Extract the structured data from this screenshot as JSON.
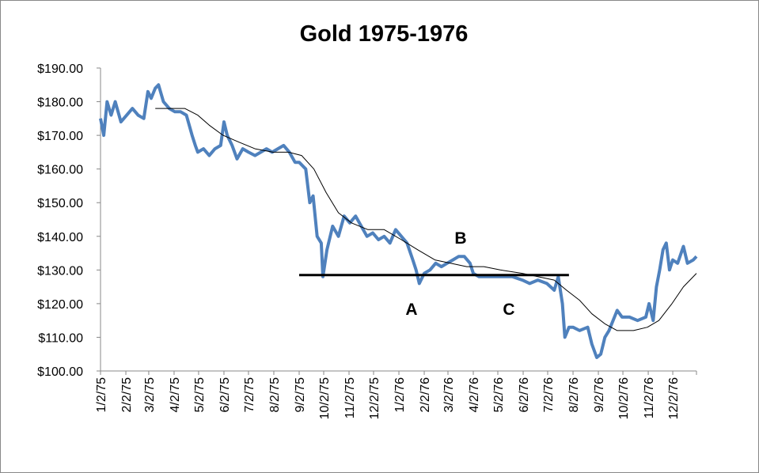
{
  "chart_data": {
    "type": "line",
    "title": "Gold 1975-1976",
    "xlim": [
      "1/2/75",
      "12/31/76"
    ],
    "xticks": [
      "1/2/75",
      "2/2/75",
      "3/2/75",
      "4/2/75",
      "5/2/75",
      "6/2/75",
      "7/2/75",
      "8/2/75",
      "9/2/75",
      "10/2/75",
      "11/2/75",
      "12/2/75",
      "1/2/76",
      "2/2/76",
      "3/2/76",
      "4/2/76",
      "5/2/76",
      "6/2/76",
      "7/2/76",
      "8/2/76",
      "9/2/76",
      "10/2/76",
      "11/2/76",
      "12/2/76"
    ],
    "ylim": [
      100,
      190
    ],
    "yticks": [
      {
        "value": 100,
        "label": "$100.00"
      },
      {
        "value": 110,
        "label": "$110.00"
      },
      {
        "value": 120,
        "label": "$120.00"
      },
      {
        "value": 130,
        "label": "$130.00"
      },
      {
        "value": 140,
        "label": "$140.00"
      },
      {
        "value": 150,
        "label": "$150.00"
      },
      {
        "value": 160,
        "label": "$160.00"
      },
      {
        "value": 170,
        "label": "$170.00"
      },
      {
        "value": 180,
        "label": "$180.00"
      },
      {
        "value": 190,
        "label": "$190.00"
      }
    ],
    "grid": false,
    "series": [
      {
        "color": "#4f81bd",
        "width": 4,
        "x": [
          "1/2/75",
          "1/6/75",
          "1/10/75",
          "1/15/75",
          "1/20/75",
          "1/27/75",
          "2/3/75",
          "2/10/75",
          "2/17/75",
          "2/24/75",
          "3/1/75",
          "3/5/75",
          "3/10/75",
          "3/14/75",
          "3/20/75",
          "3/27/75",
          "4/3/75",
          "4/10/75",
          "4/17/75",
          "4/24/75",
          "4/28/75",
          "5/1/75",
          "5/8/75",
          "5/15/75",
          "5/22/75",
          "5/29/75",
          "6/2/75",
          "6/6/75",
          "6/12/75",
          "6/18/75",
          "6/25/75",
          "7/2/75",
          "7/10/75",
          "7/17/75",
          "7/24/75",
          "7/31/75",
          "8/7/75",
          "8/14/75",
          "8/21/75",
          "8/28/75",
          "9/2/75",
          "9/10/75",
          "9/15/75",
          "9/19/75",
          "9/24/75",
          "9/29/75",
          "10/1/75",
          "10/6/75",
          "10/13/75",
          "10/20/75",
          "10/27/75",
          "11/3/75",
          "11/10/75",
          "11/17/75",
          "11/24/75",
          "12/1/75",
          "12/8/75",
          "12/15/75",
          "12/22/75",
          "12/29/75",
          "1/5/76",
          "1/12/76",
          "1/19/76",
          "1/23/76",
          "1/27/76",
          "2/2/76",
          "2/9/76",
          "2/16/76",
          "2/23/76",
          "3/1/76",
          "3/8/76",
          "3/15/76",
          "3/22/76",
          "3/29/76",
          "4/2/76",
          "4/9/76",
          "4/16/76",
          "4/23/76",
          "5/1/76",
          "5/10/76",
          "5/20/76",
          "6/1/76",
          "6/10/76",
          "6/20/76",
          "7/1/76",
          "7/10/76",
          "7/15/76",
          "7/20/76",
          "7/23/76",
          "7/28/76",
          "8/2/76",
          "8/10/76",
          "8/20/76",
          "8/25/76",
          "8/31/76",
          "9/5/76",
          "9/10/76",
          "9/15/76",
          "9/20/76",
          "9/25/76",
          "10/1/76",
          "10/10/76",
          "10/20/76",
          "10/30/76",
          "11/3/76",
          "11/8/76",
          "11/12/76",
          "11/16/76",
          "11/20/76",
          "11/24/76",
          "11/28/76",
          "12/2/76",
          "12/8/76",
          "12/15/76",
          "12/20/76",
          "12/27/76",
          "12/31/76"
        ],
        "values": [
          175,
          170,
          180,
          176,
          180,
          174,
          176,
          178,
          176,
          175,
          183,
          181,
          184,
          185,
          180,
          178,
          177,
          177,
          176,
          170,
          167,
          165,
          166,
          164,
          166,
          167,
          174,
          170,
          167,
          163,
          166,
          165,
          164,
          165,
          166,
          165,
          166,
          167,
          165,
          162,
          162,
          160,
          150,
          152,
          140,
          138,
          128,
          136,
          143,
          140,
          146,
          144,
          146,
          143,
          140,
          141,
          139,
          140,
          138,
          142,
          140,
          138,
          133,
          130,
          126,
          129,
          130,
          132,
          131,
          132,
          133,
          134,
          134,
          132,
          129,
          128,
          128,
          128,
          128,
          128,
          128,
          127,
          126,
          127,
          126,
          124,
          128,
          120,
          110,
          113,
          113,
          112,
          113,
          108,
          104,
          105,
          110,
          112,
          115,
          118,
          116,
          116,
          115,
          116,
          120,
          115,
          125,
          130,
          136,
          138,
          130,
          133,
          132,
          137,
          132,
          133,
          134
        ]
      },
      {
        "color": "#000000",
        "width": 1,
        "x": [
          "3/10/75",
          "4/1/75",
          "4/15/75",
          "5/1/75",
          "5/15/75",
          "6/1/75",
          "6/20/75",
          "7/10/75",
          "8/1/75",
          "8/20/75",
          "9/5/75",
          "9/20/75",
          "10/5/75",
          "10/20/75",
          "11/5/75",
          "11/25/75",
          "12/15/75",
          "1/5/76",
          "1/25/76",
          "2/15/76",
          "3/5/76",
          "3/25/76",
          "4/15/76",
          "5/5/76",
          "6/1/76",
          "6/20/76",
          "7/10/76",
          "7/25/76",
          "8/10/76",
          "8/25/76",
          "9/10/76",
          "9/25/76",
          "10/15/76",
          "11/1/76",
          "11/15/76",
          "12/1/76",
          "12/15/76",
          "12/31/76"
        ],
        "values": [
          178,
          178,
          178,
          176,
          173,
          170,
          168,
          166,
          165,
          165,
          164,
          160,
          153,
          147,
          144,
          142,
          142,
          139,
          136,
          133,
          132,
          131,
          131,
          130,
          129,
          128,
          127,
          124,
          121,
          117,
          114,
          112,
          112,
          113,
          115,
          120,
          125,
          129
        ]
      }
    ],
    "support_line": {
      "value": 128.5,
      "x": [
        "9/2/75",
        "7/28/76"
      ]
    },
    "annotations": [
      "A",
      "B",
      "C"
    ]
  }
}
